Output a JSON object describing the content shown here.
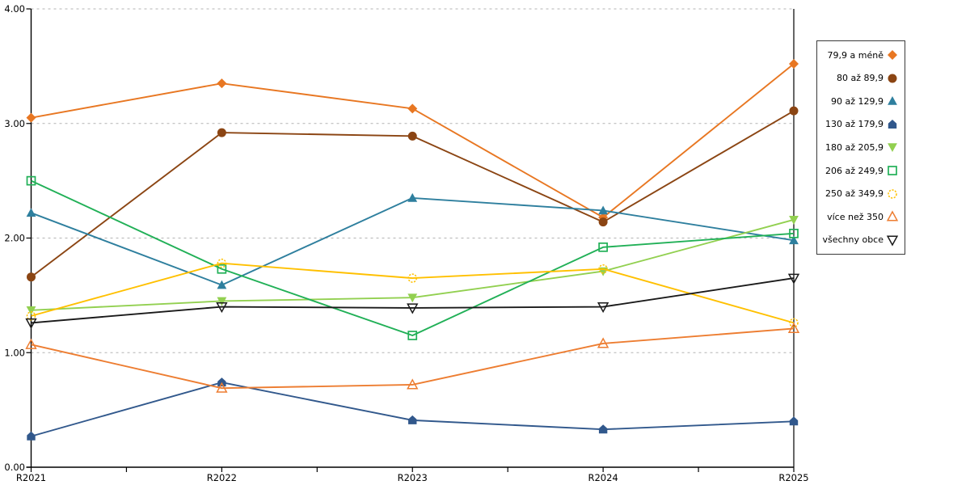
{
  "chart_data": {
    "type": "line",
    "title": "",
    "xlabel": "",
    "ylabel": "",
    "categories": [
      "R2021",
      "R2022",
      "R2023",
      "R2024",
      "R2025"
    ],
    "series": [
      {
        "name": "79,9 a méně",
        "marker": "diamond",
        "fill": "solid",
        "color": "#E87722",
        "values": [
          3.05,
          3.35,
          3.13,
          2.18,
          3.52
        ]
      },
      {
        "name": "80 až 89,9",
        "marker": "circle",
        "fill": "solid",
        "color": "#8B4513",
        "values": [
          1.66,
          2.92,
          2.89,
          2.14,
          3.11
        ]
      },
      {
        "name": "90 až 129,9",
        "marker": "triangle-up",
        "fill": "solid",
        "color": "#2E7F9E",
        "values": [
          2.22,
          1.59,
          2.35,
          2.24,
          1.98
        ]
      },
      {
        "name": "130 až 179,9",
        "marker": "pentagon",
        "fill": "solid",
        "color": "#31588C",
        "values": [
          0.27,
          0.74,
          0.41,
          0.33,
          0.4
        ]
      },
      {
        "name": "180 až 205,9",
        "marker": "triangle-down",
        "fill": "solid",
        "color": "#92D050",
        "values": [
          1.37,
          1.45,
          1.48,
          1.71,
          2.16
        ]
      },
      {
        "name": "206 až 249,9",
        "marker": "square",
        "fill": "hollow",
        "color": "#21B057",
        "values": [
          2.5,
          1.73,
          1.15,
          1.92,
          2.04
        ]
      },
      {
        "name": "250 až 349,9",
        "marker": "circle-dashed",
        "fill": "hollow",
        "color": "#FFC000",
        "values": [
          1.32,
          1.78,
          1.65,
          1.73,
          1.26
        ]
      },
      {
        "name": "více než 350",
        "marker": "triangle-up",
        "fill": "hollow",
        "color": "#ED7D31",
        "values": [
          1.07,
          0.69,
          0.72,
          1.08,
          1.21
        ]
      },
      {
        "name": "všechny obce",
        "marker": "triangle-down",
        "fill": "hollow",
        "color": "#1A1A1A",
        "values": [
          1.26,
          1.4,
          1.39,
          1.4,
          1.65
        ]
      }
    ],
    "ylim": [
      0,
      4
    ],
    "ytick_labels": [
      "0.00",
      "1.00",
      "2.00",
      "3.00",
      "4.00"
    ],
    "grid": "horizontal-dashed",
    "grid_color": "#B3B3B3",
    "axis_color": "#000000",
    "legend_position": "right-outside-box"
  }
}
